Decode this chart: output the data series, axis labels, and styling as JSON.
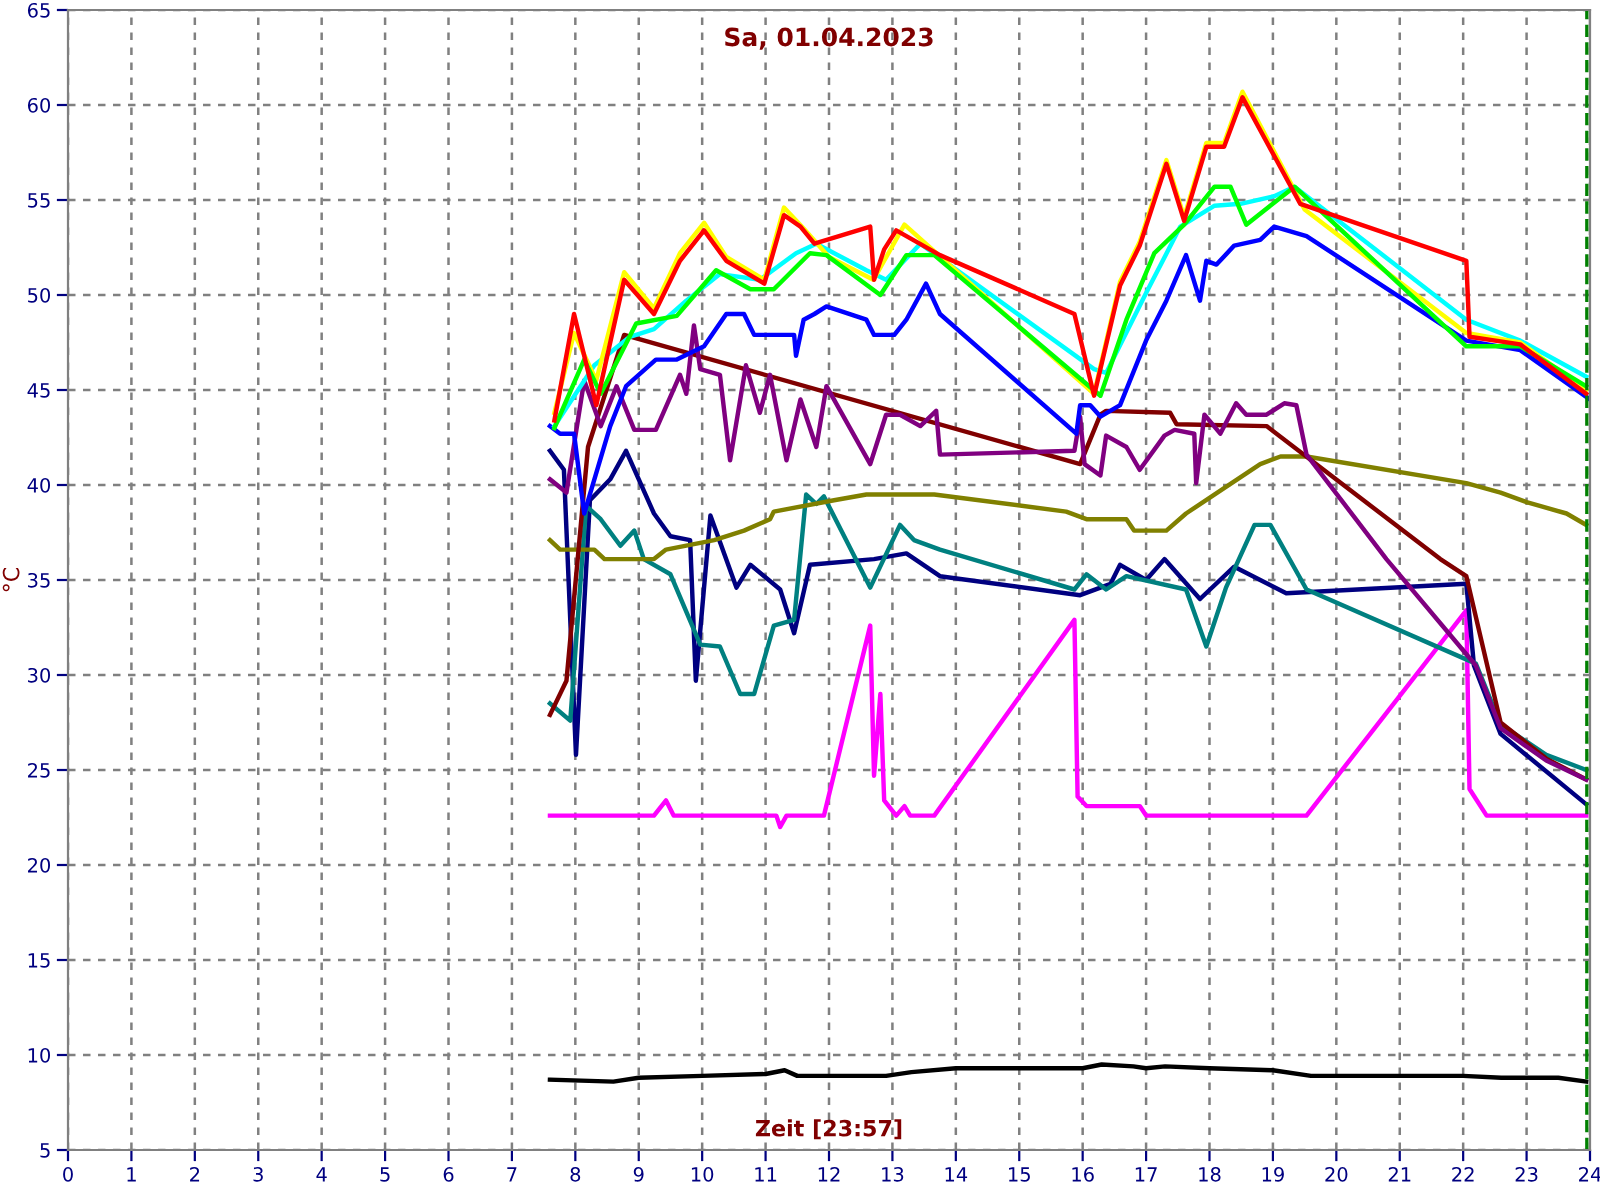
{
  "chart_data": {
    "type": "line",
    "title": "Sa, 01.04.2023",
    "xlabel": "Zeit [23:57]",
    "ylabel": "°C",
    "xlim": [
      0,
      24
    ],
    "ylim": [
      5,
      65
    ],
    "xticks": [
      0,
      1,
      2,
      3,
      4,
      5,
      6,
      7,
      8,
      9,
      10,
      11,
      12,
      13,
      14,
      15,
      16,
      17,
      18,
      19,
      20,
      21,
      22,
      23,
      24
    ],
    "yticks": [
      5,
      10,
      15,
      20,
      25,
      30,
      35,
      40,
      45,
      50,
      55,
      60,
      65
    ],
    "grid": true,
    "legend": false,
    "marker": "none",
    "line_style": "solid",
    "ref_lines": [
      {
        "axis": "x",
        "value": 23.95,
        "color": "#008000",
        "line_style": "dashed"
      }
    ],
    "series": [
      {
        "color": "#000000",
        "x": [
          7.6,
          8.6,
          9,
          10,
          11,
          11.3,
          11.5,
          12.9,
          13.3,
          14,
          16,
          16.3,
          16.8,
          17,
          17.3,
          18,
          19,
          19.6,
          22,
          22.6,
          23.5,
          23.94
        ],
        "values": [
          8.7,
          8.6,
          8.8,
          8.9,
          9.0,
          9.2,
          8.9,
          8.9,
          9.1,
          9.3,
          9.3,
          9.5,
          9.4,
          9.3,
          9.4,
          9.3,
          9.2,
          8.9,
          8.9,
          8.8,
          8.8,
          8.6
        ]
      },
      {
        "color": "#ff00ff",
        "x": [
          7.6,
          9.24,
          9.43,
          9.55,
          11.17,
          11.23,
          11.33,
          11.92,
          12.65,
          12.71,
          12.81,
          12.87,
          13.06,
          13.19,
          13.28,
          13.66,
          15.87,
          15.92,
          16.06,
          16.9,
          17.0,
          19.53,
          22.05,
          22.1,
          22.37,
          23.94
        ],
        "values": [
          22.6,
          22.6,
          23.4,
          22.6,
          22.6,
          22.0,
          22.6,
          22.6,
          32.6,
          24.7,
          29.0,
          23.4,
          22.6,
          23.1,
          22.6,
          22.6,
          32.9,
          23.6,
          23.1,
          23.1,
          22.6,
          22.6,
          33.4,
          24.0,
          22.6,
          22.6
        ]
      },
      {
        "color": "#000080",
        "x": [
          7.6,
          7.82,
          8.01,
          8.23,
          8.55,
          8.8,
          9.24,
          9.5,
          9.81,
          9.9,
          10.13,
          10.54,
          10.76,
          11.23,
          11.45,
          11.7,
          12.71,
          13.22,
          13.75,
          15.96,
          16.44,
          16.59,
          17.0,
          17.29,
          17.85,
          18.39,
          19.21,
          22.05,
          22.17,
          22.59,
          23.94
        ],
        "values": [
          41.8,
          40.8,
          25.8,
          39.2,
          40.3,
          41.8,
          38.5,
          37.3,
          37.1,
          29.7,
          38.4,
          34.6,
          35.8,
          34.5,
          32.2,
          35.8,
          36.1,
          36.4,
          35.2,
          34.2,
          34.8,
          35.8,
          35.0,
          36.1,
          34.0,
          35.7,
          34.3,
          34.8,
          30.5,
          26.9,
          23.2
        ]
      },
      {
        "color": "#008080",
        "x": [
          7.6,
          7.92,
          8.17,
          8.4,
          8.71,
          8.93,
          9.08,
          9.5,
          9.97,
          10.28,
          10.6,
          10.82,
          11.13,
          11.45,
          11.64,
          11.8,
          11.92,
          12.65,
          13.12,
          13.34,
          13.75,
          15.87,
          16.06,
          16.37,
          16.69,
          17.63,
          17.95,
          18.26,
          18.71,
          18.96,
          19.53,
          22.2,
          22.59,
          23.31,
          23.94
        ],
        "values": [
          28.5,
          27.6,
          38.9,
          38.2,
          36.8,
          37.6,
          36.1,
          35.3,
          31.6,
          31.5,
          29.0,
          29.0,
          32.6,
          32.9,
          39.5,
          39.0,
          39.4,
          34.6,
          37.9,
          37.1,
          36.6,
          34.5,
          35.3,
          34.5,
          35.2,
          34.5,
          31.5,
          34.6,
          37.9,
          37.9,
          34.5,
          30.6,
          27.4,
          25.8,
          25.0
        ]
      },
      {
        "color": "#808000",
        "x": [
          7.6,
          7.76,
          8.3,
          8.46,
          9.24,
          9.43,
          10.19,
          10.66,
          11.07,
          11.13,
          12.08,
          12.59,
          13.66,
          15.74,
          16.06,
          16.69,
          16.81,
          17.32,
          17.63,
          18.26,
          18.8,
          19.12,
          19.53,
          22.05,
          22.59,
          23.0,
          23.63,
          23.94
        ],
        "values": [
          37.1,
          36.6,
          36.6,
          36.1,
          36.1,
          36.6,
          37.1,
          37.6,
          38.2,
          38.6,
          39.2,
          39.5,
          39.5,
          38.6,
          38.2,
          38.2,
          37.6,
          37.6,
          38.5,
          39.9,
          41.1,
          41.5,
          41.5,
          40.1,
          39.6,
          39.1,
          38.5,
          37.9
        ]
      },
      {
        "color": "#800000",
        "x": [
          7.6,
          7.86,
          8.2,
          8.77,
          15.96,
          16.28,
          16.37,
          17.38,
          17.48,
          18.9,
          21.64,
          22.05,
          22.59,
          23.31,
          23.94
        ],
        "values": [
          27.9,
          29.7,
          42.0,
          47.9,
          41.1,
          43.7,
          43.9,
          43.8,
          43.2,
          43.1,
          36.1,
          35.2,
          27.5,
          25.6,
          24.5
        ]
      },
      {
        "color": "#800080",
        "x": [
          7.6,
          7.86,
          8.14,
          8.4,
          8.65,
          8.93,
          9.27,
          9.65,
          9.75,
          9.87,
          9.97,
          10.28,
          10.44,
          10.69,
          10.91,
          11.07,
          11.33,
          11.55,
          11.8,
          11.96,
          12.65,
          12.9,
          13.12,
          13.44,
          13.69,
          13.75,
          15.87,
          15.96,
          16.03,
          16.28,
          16.37,
          16.69,
          16.9,
          17.29,
          17.45,
          17.76,
          17.79,
          17.92,
          18.17,
          18.42,
          18.58,
          18.9,
          19.18,
          19.37,
          19.53,
          20.79,
          22.2,
          22.59,
          23.31,
          23.94
        ],
        "values": [
          40.3,
          39.6,
          45.5,
          43.1,
          45.2,
          42.9,
          42.9,
          45.8,
          44.8,
          48.4,
          46.1,
          45.8,
          41.3,
          46.3,
          43.8,
          45.8,
          41.3,
          44.5,
          42.0,
          45.2,
          41.1,
          43.7,
          43.7,
          43.1,
          43.9,
          41.6,
          41.8,
          43.6,
          41.1,
          40.5,
          42.6,
          42.0,
          40.8,
          42.6,
          42.9,
          42.7,
          40.1,
          43.7,
          42.7,
          44.3,
          43.7,
          43.7,
          44.3,
          44.2,
          41.6,
          36.1,
          30.5,
          27.2,
          25.5,
          24.5
        ]
      },
      {
        "color": "#0000ff",
        "x": [
          7.6,
          7.76,
          7.98,
          8.14,
          8.55,
          8.8,
          9.27,
          9.6,
          10.03,
          10.38,
          10.66,
          10.82,
          11.45,
          11.48,
          11.6,
          11.77,
          11.96,
          12.59,
          12.71,
          13.03,
          13.22,
          13.53,
          13.75,
          15.9,
          15.96,
          16.12,
          16.28,
          16.59,
          17.0,
          17.32,
          17.63,
          17.85,
          17.95,
          18.11,
          18.39,
          18.8,
          19.02,
          19.53,
          22.05,
          22.9,
          24.0
        ],
        "values": [
          43.1,
          42.7,
          42.7,
          38.5,
          43.1,
          45.2,
          46.6,
          46.6,
          47.3,
          49.0,
          49.0,
          47.9,
          47.9,
          46.8,
          48.7,
          49.0,
          49.4,
          48.7,
          47.9,
          47.9,
          48.7,
          50.6,
          49.0,
          42.7,
          44.2,
          44.2,
          43.6,
          44.2,
          47.6,
          49.7,
          52.1,
          49.7,
          51.8,
          51.6,
          52.6,
          52.9,
          53.6,
          53.1,
          47.6,
          47.1,
          44.5
        ]
      },
      {
        "color": "#00ffff",
        "x": [
          7.67,
          8.3,
          8.86,
          9.24,
          9.75,
          10.28,
          10.91,
          11.48,
          11.8,
          12.59,
          12.9,
          13.44,
          16.18,
          16.37,
          17.0,
          17.54,
          18.08,
          18.49,
          19.02,
          19.34,
          22.05,
          22.9,
          23.94
        ],
        "values": [
          43.1,
          46.3,
          47.8,
          48.2,
          49.7,
          51.1,
          50.8,
          52.2,
          52.7,
          51.3,
          50.8,
          52.7,
          46.1,
          45.9,
          50.1,
          53.6,
          54.7,
          54.8,
          55.2,
          55.7,
          48.7,
          47.6,
          45.7
        ]
      },
      {
        "color": "#ffff00",
        "x": [
          7.67,
          7.98,
          8.33,
          8.77,
          9.24,
          9.65,
          10.03,
          10.38,
          10.98,
          11.29,
          11.6,
          12.0,
          12.7,
          13.19,
          16.18,
          16.59,
          16.9,
          17.32,
          17.6,
          17.95,
          18.23,
          18.52,
          19.5,
          22.05,
          22.9,
          23.94
        ],
        "values": [
          43.8,
          48.0,
          45.5,
          51.2,
          49.3,
          52.2,
          53.8,
          52.0,
          50.8,
          54.6,
          53.5,
          52.0,
          50.8,
          53.7,
          44.8,
          50.7,
          52.8,
          57.1,
          54.1,
          58.0,
          58.0,
          60.7,
          54.5,
          48.0,
          47.5,
          45.0
        ]
      },
      {
        "color": "#00ff00",
        "x": [
          7.67,
          8.14,
          8.4,
          8.96,
          9.6,
          10.22,
          10.76,
          11.13,
          11.7,
          11.96,
          12.81,
          13.22,
          13.66,
          16.28,
          16.69,
          17.13,
          17.6,
          18.08,
          18.33,
          18.58,
          19.34,
          22.05,
          22.9,
          23.94
        ],
        "values": [
          43.0,
          46.6,
          44.8,
          48.5,
          48.9,
          51.3,
          50.3,
          50.3,
          52.2,
          52.1,
          50.0,
          52.1,
          52.1,
          44.7,
          48.7,
          52.2,
          53.7,
          55.7,
          55.7,
          53.7,
          55.7,
          47.3,
          47.3,
          45.2
        ]
      },
      {
        "color": "#ff0000",
        "x": [
          7.67,
          7.98,
          8.33,
          8.77,
          9.24,
          9.65,
          10.03,
          10.38,
          10.98,
          11.29,
          11.55,
          11.77,
          12.65,
          12.71,
          12.87,
          13.06,
          13.75,
          15.87,
          16.18,
          16.59,
          16.9,
          17.32,
          17.6,
          17.95,
          18.23,
          18.52,
          19.43,
          22.05,
          22.1,
          22.9,
          23.94
        ],
        "values": [
          43.4,
          49.0,
          44.2,
          50.8,
          49.0,
          51.8,
          53.4,
          51.8,
          50.6,
          54.2,
          53.6,
          52.7,
          53.6,
          50.8,
          52.4,
          53.4,
          52.1,
          49.0,
          44.7,
          50.5,
          52.6,
          56.9,
          53.9,
          57.8,
          57.8,
          60.4,
          54.8,
          51.8,
          47.8,
          47.4,
          44.8
        ]
      }
    ]
  }
}
